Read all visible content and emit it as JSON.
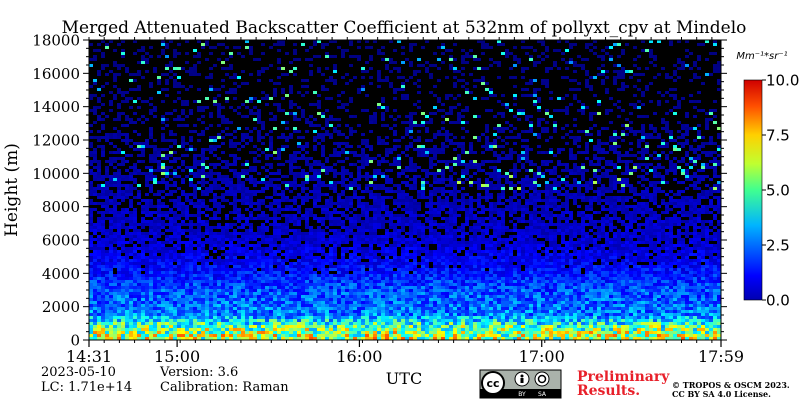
{
  "chart_data": {
    "type": "heatmap",
    "title": "Merged Attenuated Backscatter Coefficient at 532nm of pollyxt_cpv at Mindelo",
    "xlabel": "UTC",
    "ylabel": "Height (m)",
    "x_tick_labels": [
      "14:31",
      "15:00",
      "16:00",
      "17:00",
      "17:59"
    ],
    "x_ticks_minutes": [
      871,
      900,
      960,
      1020,
      1079
    ],
    "x_range_minutes": [
      871,
      1079
    ],
    "y_ticks": [
      0,
      2000,
      4000,
      6000,
      8000,
      10000,
      12000,
      14000,
      16000,
      18000
    ],
    "ylim": [
      0,
      18000
    ],
    "colorbar": {
      "unit_label": "Mm⁻¹*sr⁻¹",
      "range": [
        0.0,
        10.0
      ],
      "tick_values": [
        0.0,
        2.5,
        5.0,
        7.5,
        10.0
      ],
      "tick_labels": [
        "0.0",
        "2.5",
        "5.0",
        "7.5",
        "10.0"
      ],
      "colormap": "jet"
    },
    "profile_description_values": [
      {
        "height": 300,
        "value": 5.5
      },
      {
        "height": 700,
        "value": 5.0
      },
      {
        "height": 1500,
        "value": 2.5
      },
      {
        "height": 3000,
        "value": 2.0
      },
      {
        "height": 4500,
        "value": 1.2
      },
      {
        "height": 6000,
        "value": 0.8
      },
      {
        "height": 9000,
        "value": 0.5
      },
      {
        "height": 13000,
        "value": 0.2
      },
      {
        "height": 18000,
        "value": 0.0
      }
    ],
    "grid": false
  },
  "footer": {
    "date": "2023-05-10",
    "version": "Version: 3.6",
    "lidar_constant": "LC: 1.71e+14",
    "calibration": "Calibration: Raman",
    "preliminary_line1": "Preliminary",
    "preliminary_line2": "Results.",
    "copyright_line1": "© TROPOS & OSCM 2023.",
    "copyright_line2": "CC BY SA 4.0 License.",
    "license_badge": {
      "cc": "cc",
      "by": "BY",
      "sa": "SA"
    }
  },
  "colors": {
    "preliminary": "#e8202a",
    "badge_bg": "#aab2ab",
    "badge_dark": "#000000"
  }
}
